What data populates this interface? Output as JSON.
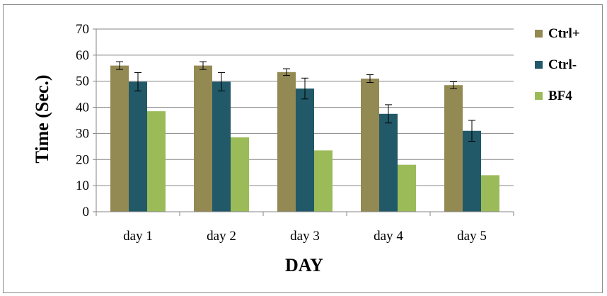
{
  "chart_data": {
    "type": "bar",
    "title": "",
    "xlabel": "DAY",
    "ylabel": "Time (Sec.)",
    "ylim": [
      0,
      70
    ],
    "y_ticks": [
      0,
      10,
      20,
      30,
      40,
      50,
      60,
      70
    ],
    "grid": true,
    "legend_position": "right",
    "categories": [
      "day 1",
      "day 2",
      "day 3",
      "day 4",
      "day 5"
    ],
    "series": [
      {
        "name": "Ctrl+",
        "color": "#938953",
        "values": [
          56,
          56,
          53.5,
          51,
          48.5
        ],
        "errors": [
          1.5,
          1.5,
          1.3,
          1.5,
          1.3
        ]
      },
      {
        "name": "Ctrl-",
        "color": "#215968",
        "values": [
          49.8,
          49.8,
          47.2,
          37.5,
          31
        ],
        "errors": [
          3.5,
          3.5,
          4.0,
          3.5,
          4.0
        ]
      },
      {
        "name": "BF4",
        "color": "#9BBB59",
        "values": [
          38.5,
          28.5,
          23.5,
          18,
          14
        ],
        "errors": [
          0,
          0,
          0,
          0,
          0
        ]
      }
    ]
  }
}
